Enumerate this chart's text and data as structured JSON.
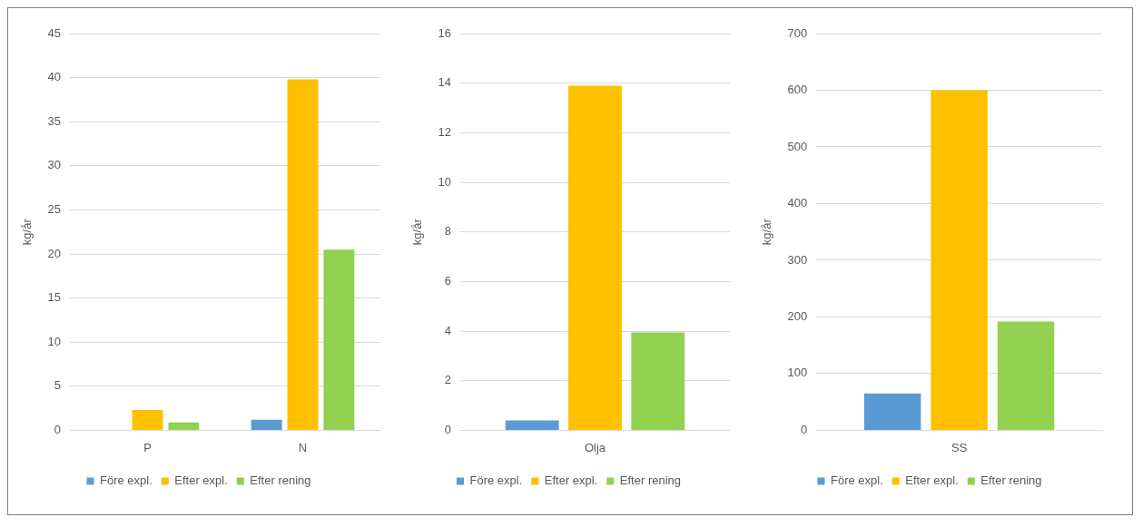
{
  "chart_data": [
    {
      "type": "bar",
      "categories": [
        "P",
        "N"
      ],
      "ylabel": "kg/år",
      "ylim": [
        0,
        45
      ],
      "yticks": [
        0,
        5,
        10,
        15,
        20,
        25,
        30,
        35,
        40,
        45
      ],
      "grid": "y",
      "legend": "bottom",
      "series": [
        {
          "name": "Före expl.",
          "color": "#5b9bd5",
          "values": [
            0,
            1.2
          ]
        },
        {
          "name": "Efter expl.",
          "color": "#ffc000",
          "values": [
            2.3,
            39.8
          ]
        },
        {
          "name": "Efter rening",
          "color": "#92d050",
          "values": [
            0.9,
            20.5
          ]
        }
      ]
    },
    {
      "type": "bar",
      "categories": [
        "Olja"
      ],
      "ylabel": "kg/år",
      "ylim": [
        0,
        16
      ],
      "yticks": [
        0,
        2,
        4,
        6,
        8,
        10,
        12,
        14,
        16
      ],
      "grid": "y",
      "legend": "bottom",
      "series": [
        {
          "name": "Före expl.",
          "color": "#5b9bd5",
          "values": [
            0.4
          ]
        },
        {
          "name": "Efter expl.",
          "color": "#ffc000",
          "values": [
            13.9
          ]
        },
        {
          "name": "Efter rening",
          "color": "#92d050",
          "values": [
            3.95
          ]
        }
      ]
    },
    {
      "type": "bar",
      "categories": [
        "SS"
      ],
      "ylabel": "kg/år",
      "ylim": [
        0,
        700
      ],
      "yticks": [
        0,
        100,
        200,
        300,
        400,
        500,
        600,
        700
      ],
      "grid": "y",
      "legend": "bottom",
      "series": [
        {
          "name": "Före expl.",
          "color": "#5b9bd5",
          "values": [
            65
          ]
        },
        {
          "name": "Efter expl.",
          "color": "#ffc000",
          "values": [
            600
          ]
        },
        {
          "name": "Efter rening",
          "color": "#92d050",
          "values": [
            192
          ]
        }
      ]
    }
  ]
}
